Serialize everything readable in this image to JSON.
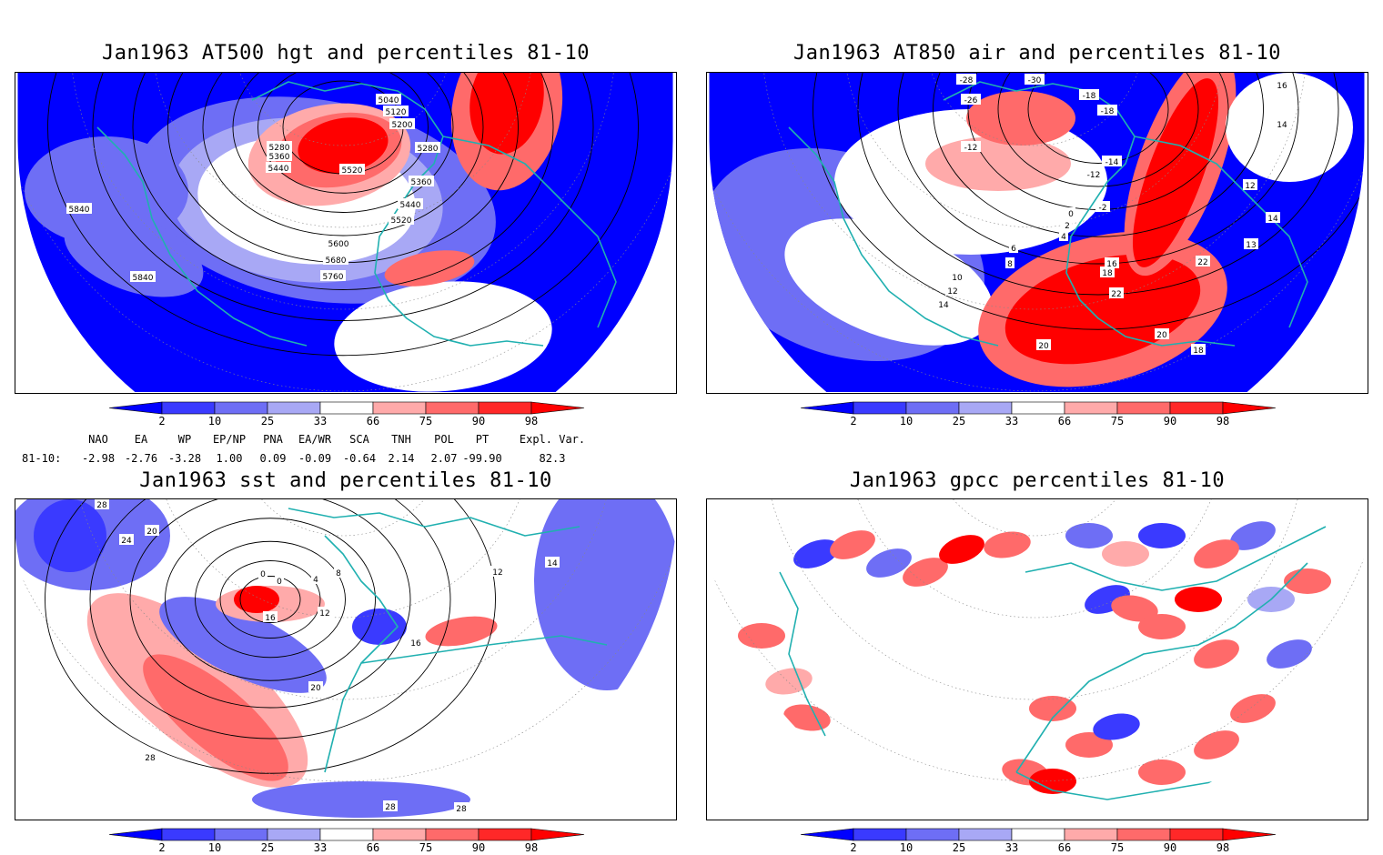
{
  "panels": [
    {
      "id": "p1",
      "title": "Jan1963 AT500 hgt and percentiles 81-10",
      "contour_labels": [
        "5040",
        "5120",
        "5200",
        "5280",
        "5280",
        "5360",
        "5440",
        "5520",
        "5360",
        "5440",
        "5520",
        "5600",
        "5680",
        "5760",
        "5840",
        "5840"
      ]
    },
    {
      "id": "p2",
      "title": "Jan1963 AT850 air and percentiles 81-10",
      "contour_labels": [
        "-28",
        "-30",
        "-26",
        "-18",
        "-18",
        "-12",
        "-14",
        "-12",
        "-2",
        "0",
        "2",
        "4",
        "6",
        "8",
        "10",
        "12",
        "14",
        "16",
        "18",
        "20",
        "22",
        "22",
        "20",
        "18",
        "16",
        "14",
        "12",
        "13",
        "14"
      ]
    },
    {
      "id": "p3",
      "title": "Jan1963 sst and percentiles 81-10",
      "contour_labels": [
        "28",
        "24",
        "20",
        "0",
        "0",
        "4",
        "8",
        "12",
        "16",
        "20",
        "28",
        "28",
        "28",
        "16",
        "12",
        "14"
      ]
    },
    {
      "id": "p4",
      "title": "Jan1963 gpcc percentiles 81-10",
      "contour_labels": []
    }
  ],
  "colorbar": {
    "labels": [
      "2",
      "10",
      "25",
      "33",
      "66",
      "75",
      "90",
      "98"
    ],
    "colors": {
      "below2": "#0000ff",
      "c2_10": "#3a3aff",
      "c10_25": "#6e6ef5",
      "c25_33": "#a8a8f5",
      "neutral": "#ffffff",
      "c66_75": "#ffaaaa",
      "c75_90": "#ff6a6a",
      "c90_98": "#ff2828",
      "above98": "#ff0000"
    }
  },
  "indices": {
    "headers": [
      "NAO",
      "EA",
      "WP",
      "EP/NP",
      "PNA",
      "EA/WR",
      "SCA",
      "TNH",
      "POL",
      "PT",
      "Expl. Var."
    ],
    "row_label": "81-10:",
    "values": [
      "-2.98",
      "-2.76",
      "-3.28",
      "1.00",
      "0.09",
      "-0.09",
      "-0.64",
      "2.14",
      "2.07",
      "-99.90",
      "82.3"
    ]
  },
  "map_colors": {
    "coast": "#20b0b0",
    "contour": "#000000",
    "grid": "#888888"
  }
}
